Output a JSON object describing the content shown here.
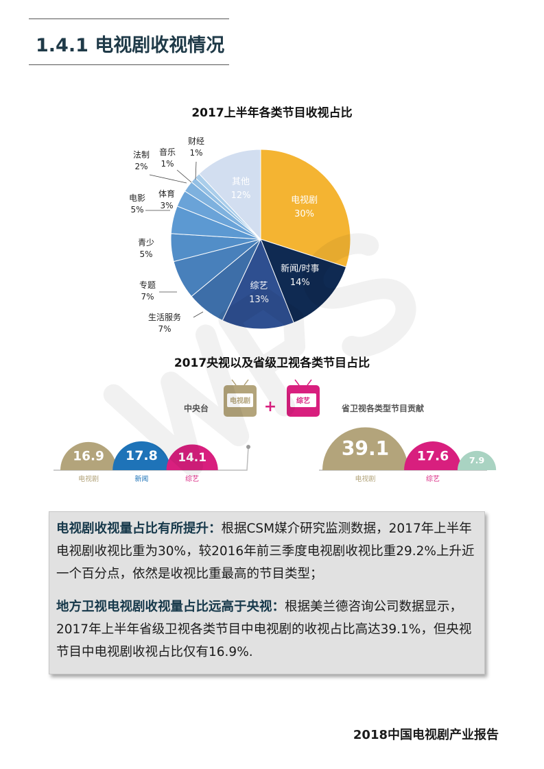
{
  "section": {
    "title": "1.4.1 电视剧收视情况"
  },
  "chart_data": [
    {
      "type": "pie",
      "title": "2017上半年各类节目收视占比",
      "slices": [
        {
          "label": "电视剧",
          "value": 30,
          "display": "30%",
          "color": "#f4b432",
          "text_inside": true
        },
        {
          "label": "新闻/时事",
          "value": 14,
          "display": "14%",
          "color": "#0f2a52",
          "text_inside": true
        },
        {
          "label": "综艺",
          "value": 13,
          "display": "13%",
          "color": "#2e4f90",
          "text_inside": true
        },
        {
          "label": "生活服务",
          "value": 7,
          "display": "7%",
          "color": "#3d6ea8",
          "text_inside": false
        },
        {
          "label": "专题",
          "value": 7,
          "display": "7%",
          "color": "#4880bb",
          "text_inside": false
        },
        {
          "label": "青少",
          "value": 5,
          "display": "5%",
          "color": "#528ec8",
          "text_inside": false
        },
        {
          "label": "电影",
          "value": 5,
          "display": "5%",
          "color": "#5c99d2",
          "text_inside": false
        },
        {
          "label": "体育",
          "value": 3,
          "display": "3%",
          "color": "#6aa3d8",
          "text_inside": false
        },
        {
          "label": "法制",
          "value": 2,
          "display": "2%",
          "color": "#7eb1de",
          "text_inside": false
        },
        {
          "label": "音乐",
          "value": 1,
          "display": "1%",
          "color": "#93bfe4",
          "text_inside": false
        },
        {
          "label": "财经",
          "value": 1,
          "display": "1%",
          "color": "#a9cdea",
          "text_inside": false
        },
        {
          "label": "其他",
          "value": 12,
          "display": "12%",
          "color": "#d2def0",
          "text_inside": true
        }
      ]
    },
    {
      "type": "bar",
      "title": "2017央视以及省级卫视各类节目占比",
      "groups": [
        {
          "name": "中央台",
          "categories": [
            "电视剧",
            "新闻",
            "综艺"
          ],
          "values": [
            16.9,
            17.8,
            14.1
          ],
          "colors": [
            "#b3a47b",
            "#1e73b8",
            "#d81f7e"
          ]
        },
        {
          "name": "省卫视各类型节目贡献",
          "categories": [
            "电视剧",
            "综艺",
            ""
          ],
          "values": [
            39.1,
            17.6,
            7.9
          ],
          "colors": [
            "#b3a47b",
            "#d81f7e",
            "#a9d3c2"
          ]
        }
      ],
      "tv_labels": [
        "电视剧",
        "综艺"
      ],
      "plus": "+"
    }
  ],
  "summary": {
    "p1_lead": "电视剧收视量占比有所提升：",
    "p1_body": "根据CSM媒介研究监测数据，2017年上半年电视剧收视比重为30%，较2016年前三季度电视剧收视比重29.2%上升近一个百分点，依然是收视比重最高的节目类型；",
    "p2_lead": "地方卫视电视剧收视量占比远高于央视：",
    "p2_body": "根据美兰德咨询公司数据显示，2017年上半年省级卫视各类节目中电视剧的收视占比高达39.1%，但央视节目中电视剧收视占比仅有16.9%."
  },
  "footer": {
    "title": "2018中国电视剧产业报告"
  },
  "colors": {
    "title": "#1f3a48",
    "box_bg": "#e1e1e1"
  }
}
